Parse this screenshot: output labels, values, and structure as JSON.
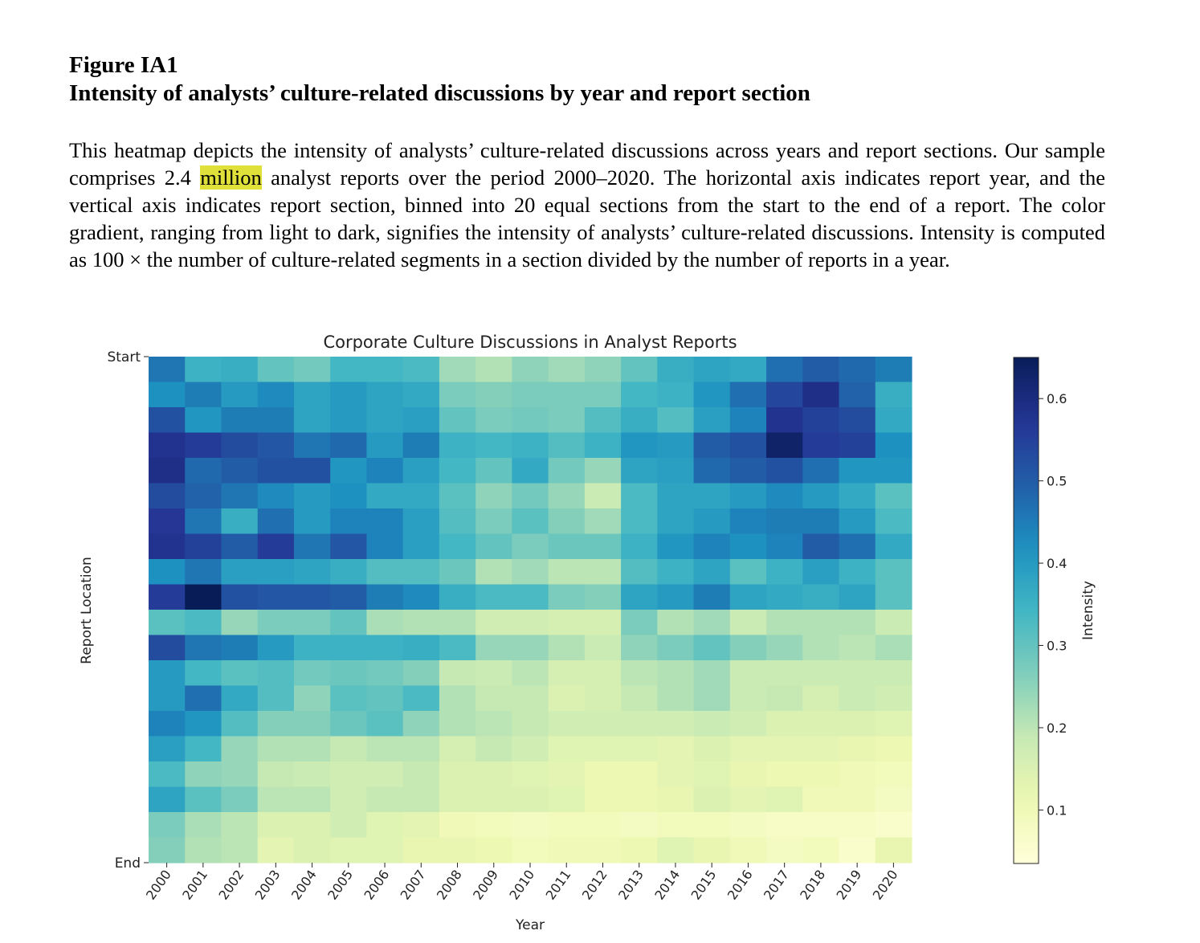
{
  "figure": {
    "label": "Figure IA1",
    "title": "Intensity of analysts’ culture-related discussions by year and report section"
  },
  "caption": {
    "before": "This heatmap depicts the intensity of analysts’ culture-related discussions across years and report sections. Our sample comprises 2.4 ",
    "highlight": "million",
    "after": " analyst reports over the period 2000–2020. The horizontal axis indicates report year, and the vertical axis indicates report section, binned into 20 equal sections from the start to the end of a report. The color gradient, ranging from light to dark, signifies the intensity of analysts’ culture-related discussions. Intensity is computed as 100 × the number of culture-related segments in a section divided by the number of reports in a year."
  },
  "colors": {
    "highlight": "#dfe03a",
    "colormap": "YlGnBu"
  },
  "chart_data": {
    "type": "heatmap",
    "title": "Corporate Culture Discussions in Analyst Reports",
    "xlabel": "Year",
    "ylabel": "Report Location",
    "x": [
      "2000",
      "2001",
      "2002",
      "2003",
      "2004",
      "2005",
      "2006",
      "2007",
      "2008",
      "2009",
      "2010",
      "2011",
      "2012",
      "2013",
      "2014",
      "2015",
      "2016",
      "2017",
      "2018",
      "2019",
      "2020"
    ],
    "y_tick_labels": [
      "Start",
      "End"
    ],
    "colorbar_label": "Intensity",
    "colorbar_ticks": [
      0.1,
      0.2,
      0.3,
      0.4,
      0.5,
      0.6
    ],
    "vmin": 0.035,
    "vmax": 0.65,
    "values": [
      [
        0.46,
        0.35,
        0.36,
        0.3,
        0.28,
        0.34,
        0.34,
        0.33,
        0.23,
        0.21,
        0.25,
        0.23,
        0.25,
        0.3,
        0.36,
        0.38,
        0.37,
        0.47,
        0.5,
        0.48,
        0.45
      ],
      [
        0.42,
        0.45,
        0.4,
        0.43,
        0.38,
        0.4,
        0.38,
        0.37,
        0.27,
        0.26,
        0.27,
        0.27,
        0.27,
        0.34,
        0.35,
        0.41,
        0.47,
        0.54,
        0.59,
        0.49,
        0.36
      ],
      [
        0.52,
        0.41,
        0.45,
        0.45,
        0.38,
        0.4,
        0.38,
        0.39,
        0.3,
        0.27,
        0.28,
        0.27,
        0.32,
        0.36,
        0.32,
        0.39,
        0.44,
        0.58,
        0.55,
        0.53,
        0.37
      ],
      [
        0.58,
        0.56,
        0.53,
        0.51,
        0.46,
        0.48,
        0.4,
        0.45,
        0.35,
        0.34,
        0.35,
        0.32,
        0.35,
        0.41,
        0.4,
        0.5,
        0.52,
        0.63,
        0.56,
        0.55,
        0.42
      ],
      [
        0.59,
        0.48,
        0.5,
        0.52,
        0.52,
        0.41,
        0.44,
        0.39,
        0.34,
        0.3,
        0.37,
        0.28,
        0.24,
        0.38,
        0.39,
        0.48,
        0.5,
        0.52,
        0.47,
        0.41,
        0.41
      ],
      [
        0.53,
        0.49,
        0.46,
        0.43,
        0.4,
        0.42,
        0.37,
        0.37,
        0.31,
        0.25,
        0.28,
        0.24,
        0.18,
        0.33,
        0.38,
        0.38,
        0.4,
        0.43,
        0.4,
        0.37,
        0.31
      ],
      [
        0.57,
        0.46,
        0.36,
        0.47,
        0.4,
        0.44,
        0.44,
        0.39,
        0.32,
        0.27,
        0.31,
        0.26,
        0.23,
        0.33,
        0.38,
        0.4,
        0.44,
        0.45,
        0.45,
        0.4,
        0.33
      ],
      [
        0.58,
        0.55,
        0.5,
        0.56,
        0.46,
        0.51,
        0.44,
        0.39,
        0.34,
        0.3,
        0.27,
        0.29,
        0.29,
        0.35,
        0.41,
        0.44,
        0.42,
        0.44,
        0.5,
        0.47,
        0.37
      ],
      [
        0.42,
        0.46,
        0.39,
        0.39,
        0.38,
        0.36,
        0.32,
        0.32,
        0.29,
        0.21,
        0.23,
        0.2,
        0.2,
        0.32,
        0.35,
        0.38,
        0.31,
        0.35,
        0.39,
        0.35,
        0.31
      ],
      [
        0.56,
        0.65,
        0.52,
        0.51,
        0.51,
        0.5,
        0.45,
        0.43,
        0.36,
        0.33,
        0.33,
        0.27,
        0.26,
        0.38,
        0.4,
        0.45,
        0.38,
        0.37,
        0.36,
        0.38,
        0.31
      ],
      [
        0.31,
        0.33,
        0.24,
        0.27,
        0.27,
        0.3,
        0.22,
        0.21,
        0.21,
        0.17,
        0.17,
        0.16,
        0.16,
        0.27,
        0.21,
        0.23,
        0.18,
        0.21,
        0.21,
        0.21,
        0.18
      ],
      [
        0.53,
        0.46,
        0.45,
        0.4,
        0.35,
        0.35,
        0.35,
        0.36,
        0.33,
        0.24,
        0.24,
        0.21,
        0.18,
        0.25,
        0.27,
        0.3,
        0.26,
        0.24,
        0.21,
        0.2,
        0.22
      ],
      [
        0.4,
        0.34,
        0.31,
        0.32,
        0.28,
        0.29,
        0.28,
        0.26,
        0.19,
        0.18,
        0.2,
        0.16,
        0.16,
        0.2,
        0.21,
        0.23,
        0.18,
        0.18,
        0.18,
        0.18,
        0.18
      ],
      [
        0.4,
        0.47,
        0.37,
        0.32,
        0.25,
        0.31,
        0.3,
        0.33,
        0.21,
        0.19,
        0.19,
        0.15,
        0.16,
        0.19,
        0.21,
        0.23,
        0.18,
        0.19,
        0.16,
        0.18,
        0.17
      ],
      [
        0.44,
        0.41,
        0.32,
        0.26,
        0.26,
        0.29,
        0.31,
        0.25,
        0.21,
        0.2,
        0.19,
        0.17,
        0.17,
        0.17,
        0.17,
        0.18,
        0.17,
        0.15,
        0.15,
        0.15,
        0.14
      ],
      [
        0.39,
        0.34,
        0.24,
        0.21,
        0.21,
        0.19,
        0.2,
        0.2,
        0.16,
        0.19,
        0.17,
        0.14,
        0.14,
        0.14,
        0.13,
        0.15,
        0.13,
        0.13,
        0.13,
        0.12,
        0.11
      ],
      [
        0.33,
        0.25,
        0.24,
        0.19,
        0.18,
        0.17,
        0.17,
        0.19,
        0.15,
        0.15,
        0.14,
        0.13,
        0.11,
        0.11,
        0.13,
        0.14,
        0.12,
        0.11,
        0.11,
        0.1,
        0.09
      ],
      [
        0.38,
        0.31,
        0.27,
        0.2,
        0.2,
        0.17,
        0.19,
        0.19,
        0.15,
        0.15,
        0.15,
        0.14,
        0.11,
        0.11,
        0.12,
        0.15,
        0.13,
        0.14,
        0.1,
        0.1,
        0.08
      ],
      [
        0.27,
        0.22,
        0.2,
        0.15,
        0.15,
        0.17,
        0.14,
        0.13,
        0.1,
        0.09,
        0.08,
        0.09,
        0.09,
        0.08,
        0.09,
        0.09,
        0.08,
        0.07,
        0.07,
        0.07,
        0.06
      ],
      [
        0.26,
        0.21,
        0.2,
        0.13,
        0.15,
        0.14,
        0.14,
        0.12,
        0.12,
        0.11,
        0.09,
        0.1,
        0.1,
        0.11,
        0.14,
        0.12,
        0.1,
        0.08,
        0.09,
        0.06,
        0.12
      ]
    ]
  }
}
